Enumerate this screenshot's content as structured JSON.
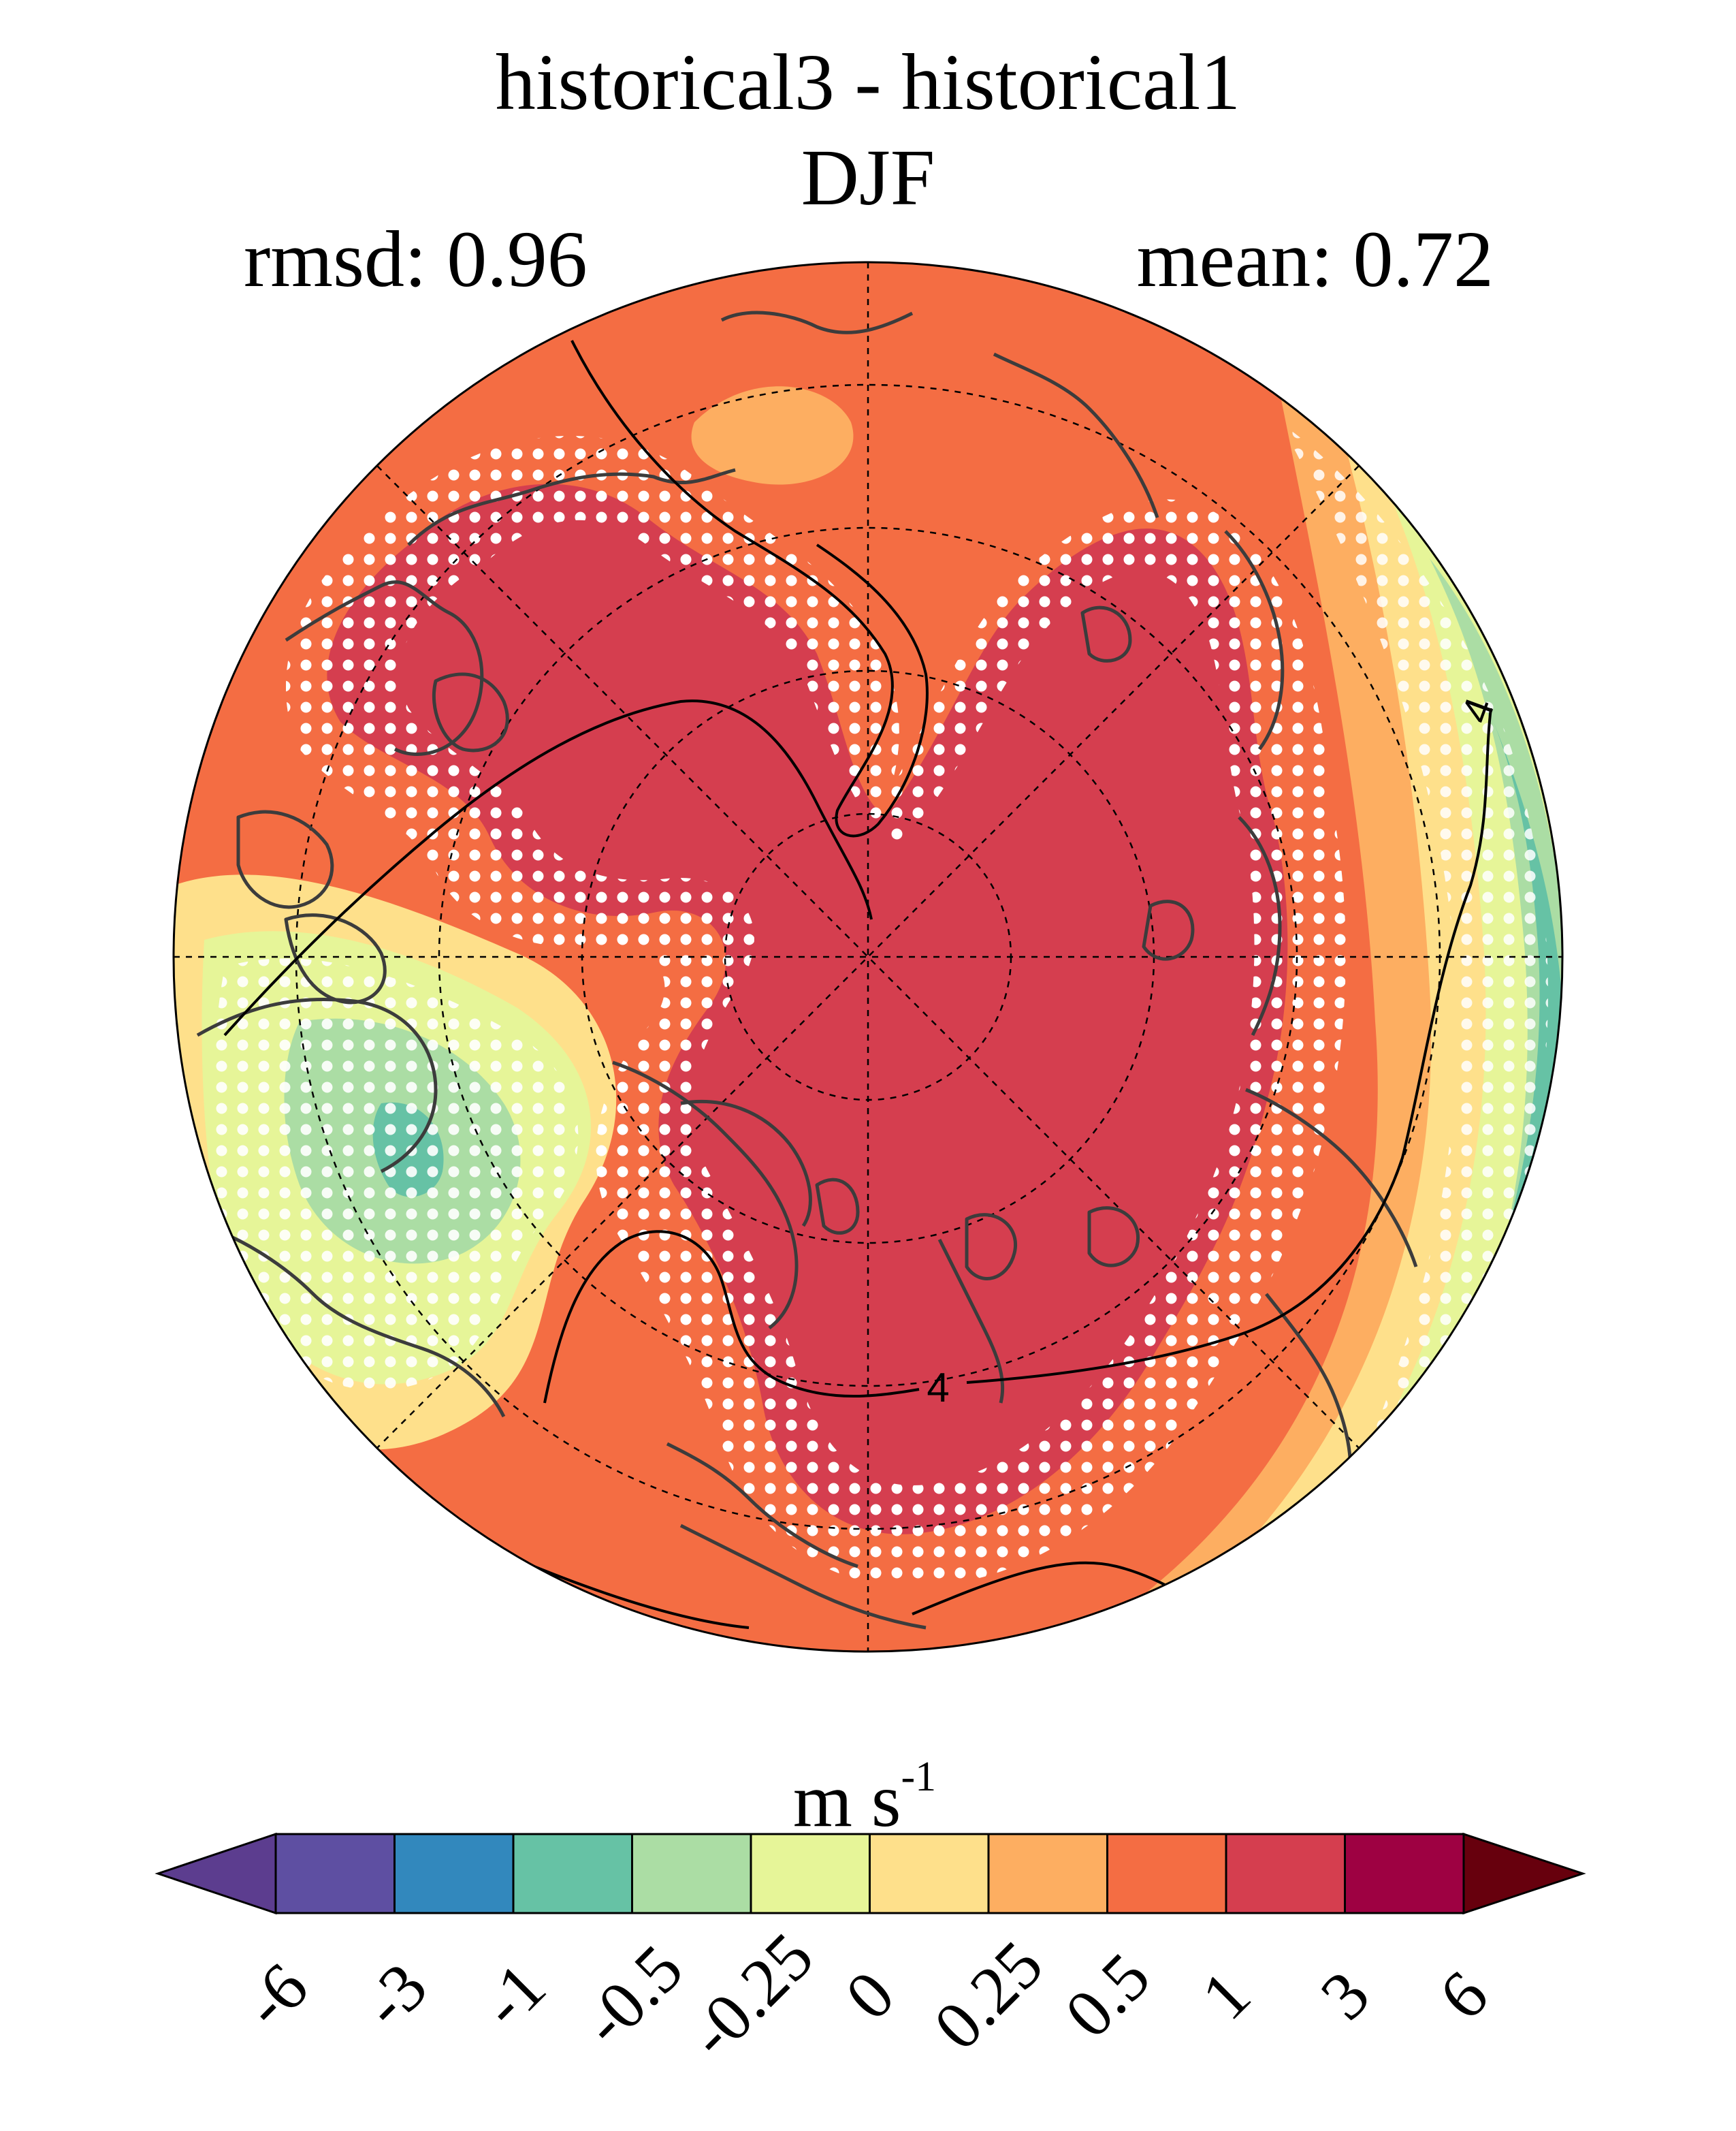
{
  "title": "historical3 - historical1",
  "season": "DJF",
  "rmsd_label": "rmsd: 0.96",
  "mean_label": "mean: 0.72",
  "contour_labels": [
    "4",
    "4"
  ],
  "colorbar": {
    "units_base": "m s",
    "units_exp": "-1",
    "ticks": [
      "-6",
      "-3",
      "-1",
      "-0.5",
      "-0.25",
      "0",
      "0.25",
      "0.5",
      "1",
      "3",
      "6"
    ],
    "colors": [
      "#5c3d8f",
      "#5e4fa2",
      "#3288bd",
      "#66c2a5",
      "#abdda4",
      "#e6f598",
      "#fee08b",
      "#fdae61",
      "#f46d43",
      "#d53e4f",
      "#9e0142",
      "#67000d"
    ],
    "extend": "both"
  },
  "map": {
    "projection": "north-polar-stereographic",
    "stippling": "white dots mark significant differences",
    "dominant_colors": [
      "#d53e4f",
      "#f46d43",
      "#fdae61",
      "#fee08b",
      "#e6f598",
      "#abdda4",
      "#66c2a5"
    ]
  }
}
